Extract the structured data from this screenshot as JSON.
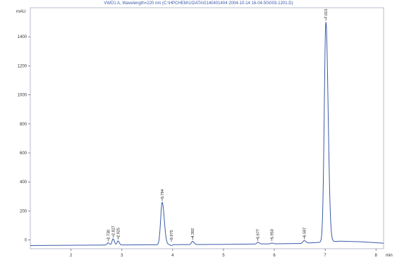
{
  "chart_data": {
    "type": "line",
    "title": "VWD1 A, Wavelength=220 nm (C:\\HPCHEM\\1\\DATA\\0140401404 2004-10-14 16-04-50\\003-1201.D)",
    "ylabel": "mAU",
    "xlabel": "min",
    "xlim": [
      1.2,
      8.15
    ],
    "ylim": [
      -60,
      1600
    ],
    "x_ticks": [
      2,
      3,
      4,
      5,
      6,
      7,
      8
    ],
    "y_ticks": [
      0,
      200,
      400,
      600,
      800,
      1000,
      1200,
      1400
    ],
    "grid": false,
    "peaks": [
      {
        "rt": 2.73,
        "height": 15,
        "width": 0.02,
        "label": "2.730"
      },
      {
        "rt": 2.827,
        "height": 42,
        "width": 0.02,
        "label": "2.827"
      },
      {
        "rt": 2.925,
        "height": 28,
        "width": 0.018,
        "label": "2.925"
      },
      {
        "rt": 3.794,
        "height": 292,
        "width": 0.03,
        "label": "3.794"
      },
      {
        "rt": 3.975,
        "height": -6,
        "width": 0.015,
        "label": "3.975"
      },
      {
        "rt": 4.392,
        "height": 22,
        "width": 0.022,
        "label": "4.392"
      },
      {
        "rt": 5.677,
        "height": 12,
        "width": 0.02,
        "label": "5.677"
      },
      {
        "rt": 5.95,
        "height": 5,
        "width": 0.02,
        "label": "5.950"
      },
      {
        "rt": 6.587,
        "height": 18,
        "width": 0.025,
        "label": "6.587"
      },
      {
        "rt": 7.015,
        "height": 1515,
        "width": 0.032,
        "label": "7.015"
      }
    ],
    "baseline": [
      [
        1.2,
        -38
      ],
      [
        2.5,
        -35
      ],
      [
        3.5,
        -33
      ],
      [
        5.0,
        -30
      ],
      [
        6.5,
        -24
      ],
      [
        7.3,
        -8
      ],
      [
        7.7,
        -12
      ],
      [
        8.15,
        -22
      ]
    ],
    "color": "#3a5aa8"
  }
}
